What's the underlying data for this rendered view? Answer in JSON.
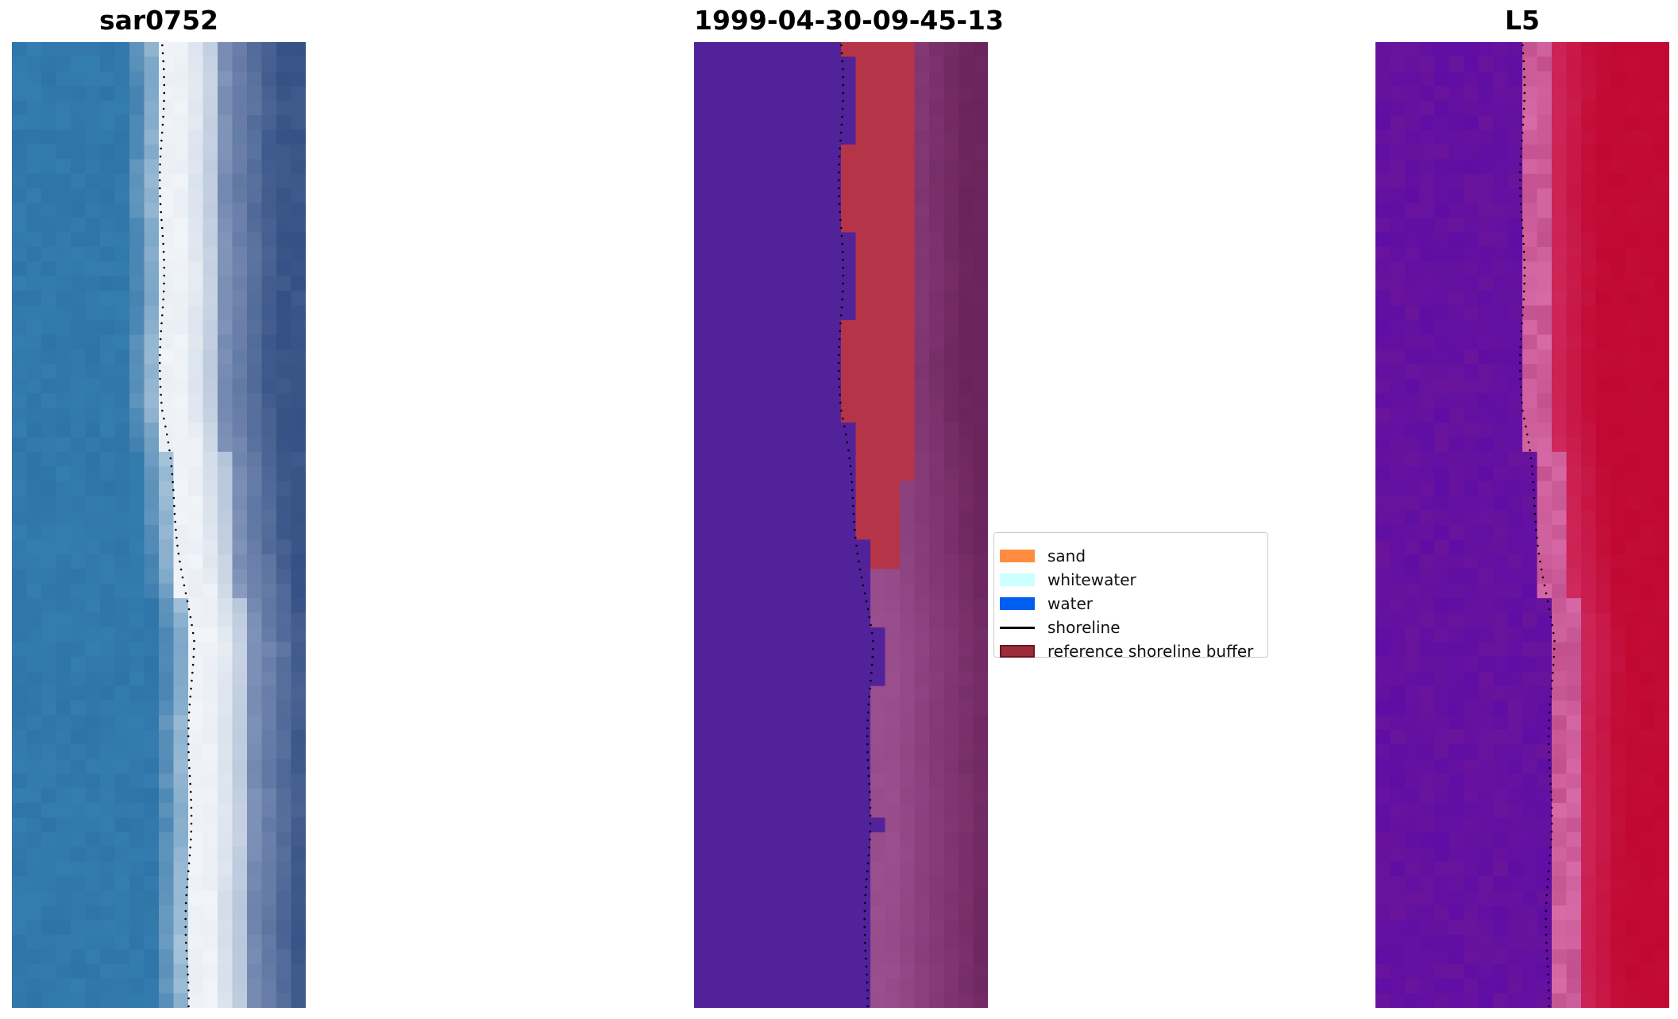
{
  "panels": [
    {
      "id": "rgb",
      "title": "sar0752"
    },
    {
      "id": "classification",
      "title": "1999-04-30-09-45-13"
    },
    {
      "id": "index",
      "title": "L5"
    }
  ],
  "legend": {
    "items": [
      {
        "label": "sand",
        "color": "#ff8c3f",
        "kind": "patch"
      },
      {
        "label": "whitewater",
        "color": "#ccffff",
        "kind": "patch"
      },
      {
        "label": "water",
        "color": "#005ef0",
        "kind": "patch"
      },
      {
        "label": "shoreline",
        "color": "#000000",
        "kind": "line"
      },
      {
        "label": "reference shoreline buffer",
        "color": "#8b2a36",
        "kind": "patch"
      }
    ]
  },
  "colors": {
    "water_class": "#52229a",
    "buffer_overlay": "#b63447",
    "rgb_sea": "#2f74a8",
    "rgb_surf": "#f1f4f8",
    "rgb_beach": "#3f5a8c",
    "index_low": "#6a149c",
    "index_high": "#c20b36"
  },
  "shoreline_style": "dotted"
}
